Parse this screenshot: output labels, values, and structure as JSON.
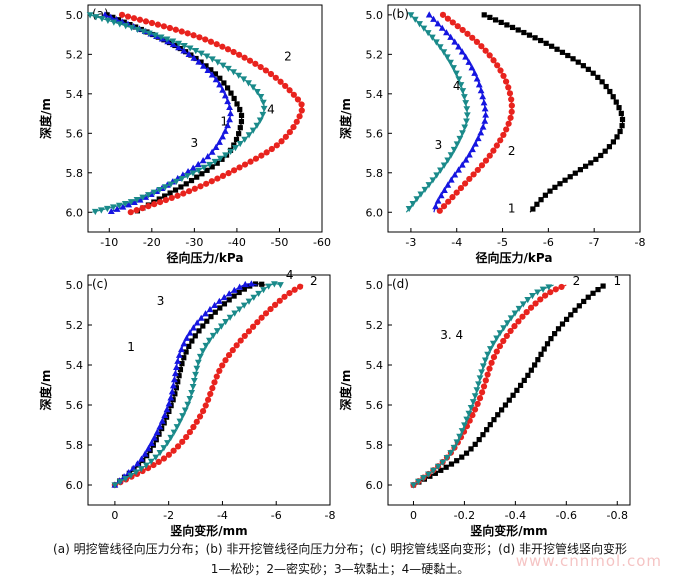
{
  "chart_data": [
    {
      "type": "scatter",
      "panel_label": "(a)",
      "xlabel": "径向压力/kPa",
      "ylabel": "深度/m",
      "xlim": [
        -5,
        -60
      ],
      "ylim": [
        6.1,
        4.95
      ],
      "xticks": [
        "-10",
        "-20",
        "-30",
        "-40",
        "-50",
        "-60"
      ],
      "yticks": [
        "5.0",
        "5.2",
        "5.4",
        "5.6",
        "5.8",
        "6.0"
      ],
      "series": [
        {
          "name": "1",
          "marker": "square",
          "color": "#000000",
          "points": [
            [
              -9.5,
              5.0
            ],
            [
              -25,
              5.15
            ],
            [
              -35,
              5.3
            ],
            [
              -40,
              5.45
            ],
            [
              -41,
              5.55
            ],
            [
              -38,
              5.7
            ],
            [
              -30,
              5.83
            ],
            [
              -22,
              5.93
            ],
            [
              -16,
              6.0
            ]
          ]
        },
        {
          "name": "2",
          "marker": "circle",
          "color": "#e8231e",
          "points": [
            [
              -13,
              5.0
            ],
            [
              -32,
              5.12
            ],
            [
              -46,
              5.27
            ],
            [
              -54,
              5.42
            ],
            [
              -55,
              5.5
            ],
            [
              -50,
              5.65
            ],
            [
              -40,
              5.78
            ],
            [
              -28,
              5.9
            ],
            [
              -15,
              6.0
            ]
          ]
        },
        {
          "name": "3",
          "marker": "triangle-up",
          "color": "#1515e0",
          "points": [
            [
              -9,
              5.0
            ],
            [
              -25,
              5.15
            ],
            [
              -34,
              5.3
            ],
            [
              -38,
              5.45
            ],
            [
              -38,
              5.55
            ],
            [
              -34,
              5.7
            ],
            [
              -26,
              5.83
            ],
            [
              -18,
              5.93
            ],
            [
              -10,
              6.0
            ]
          ]
        },
        {
          "name": "4",
          "marker": "triangle-down",
          "color": "#1a8a8a",
          "points": [
            [
              -5.5,
              5.0
            ],
            [
              -27,
              5.15
            ],
            [
              -40,
              5.3
            ],
            [
              -46,
              5.43
            ],
            [
              -45,
              5.55
            ],
            [
              -38,
              5.7
            ],
            [
              -27,
              5.83
            ],
            [
              -16,
              5.94
            ],
            [
              -6,
              6.0
            ]
          ]
        }
      ],
      "annotations": [
        {
          "text": "1",
          "x": -37,
          "y": 5.56
        },
        {
          "text": "2",
          "x": -52,
          "y": 5.23
        },
        {
          "text": "3",
          "x": -30,
          "y": 5.67
        },
        {
          "text": "4",
          "x": -48,
          "y": 5.5
        }
      ]
    },
    {
      "type": "scatter",
      "panel_label": "(b)",
      "xlabel": "径向压力/kPa",
      "ylabel": "深度/m",
      "xlim": [
        -2.5,
        -8
      ],
      "ylim": [
        6.1,
        4.95
      ],
      "xticks": [
        "-3",
        "-4",
        "-5",
        "-6",
        "-7",
        "-8"
      ],
      "yticks": [
        "5.0",
        "5.2",
        "5.4",
        "5.6",
        "5.8",
        "6.0"
      ],
      "series": [
        {
          "name": "1",
          "marker": "square",
          "color": "#000000",
          "points": [
            [
              -4.6,
              5.0
            ],
            [
              -6.0,
              5.15
            ],
            [
              -7.0,
              5.3
            ],
            [
              -7.5,
              5.45
            ],
            [
              -7.6,
              5.57
            ],
            [
              -7.2,
              5.7
            ],
            [
              -6.6,
              5.8
            ],
            [
              -6.0,
              5.9
            ],
            [
              -5.6,
              6.0
            ]
          ]
        },
        {
          "name": "2",
          "marker": "circle",
          "color": "#e8231e",
          "points": [
            [
              -3.7,
              5.0
            ],
            [
              -4.5,
              5.15
            ],
            [
              -5.0,
              5.3
            ],
            [
              -5.2,
              5.45
            ],
            [
              -5.1,
              5.57
            ],
            [
              -4.7,
              5.72
            ],
            [
              -4.2,
              5.85
            ],
            [
              -3.8,
              5.95
            ],
            [
              -3.6,
              6.0
            ]
          ]
        },
        {
          "name": "3",
          "marker": "triangle-up",
          "color": "#1515e0",
          "points": [
            [
              -3.4,
              5.0
            ],
            [
              -4.0,
              5.15
            ],
            [
              -4.4,
              5.3
            ],
            [
              -4.6,
              5.45
            ],
            [
              -4.6,
              5.55
            ],
            [
              -4.3,
              5.7
            ],
            [
              -3.9,
              5.83
            ],
            [
              -3.6,
              5.94
            ],
            [
              -3.5,
              6.0
            ]
          ]
        },
        {
          "name": "4",
          "marker": "triangle-down",
          "color": "#1a8a8a",
          "points": [
            [
              -3.0,
              5.0
            ],
            [
              -3.6,
              5.15
            ],
            [
              -4.0,
              5.3
            ],
            [
              -4.2,
              5.45
            ],
            [
              -4.2,
              5.55
            ],
            [
              -3.9,
              5.7
            ],
            [
              -3.5,
              5.83
            ],
            [
              -3.1,
              5.94
            ],
            [
              -2.9,
              6.0
            ]
          ]
        }
      ],
      "annotations": [
        {
          "text": "1",
          "x": -5.2,
          "y": 6.0
        },
        {
          "text": "2",
          "x": -5.2,
          "y": 5.71
        },
        {
          "text": "3",
          "x": -3.6,
          "y": 5.68
        },
        {
          "text": "4",
          "x": -4.0,
          "y": 5.38
        }
      ]
    },
    {
      "type": "scatter",
      "panel_label": "(c)",
      "xlabel": "竖向变形/mm",
      "ylabel": "深度/m",
      "xlim": [
        1,
        -8
      ],
      "ylim": [
        6.1,
        4.95
      ],
      "xticks": [
        "0",
        "-2",
        "-4",
        "-6",
        "-8"
      ],
      "yticks": [
        "5.0",
        "5.2",
        "5.4",
        "5.6",
        "5.8",
        "6.0"
      ],
      "series": [
        {
          "name": "1",
          "marker": "square",
          "color": "#000000",
          "points": [
            [
              0,
              6.0
            ],
            [
              -1.2,
              5.85
            ],
            [
              -2.1,
              5.6
            ],
            [
              -2.6,
              5.35
            ],
            [
              -3.3,
              5.2
            ],
            [
              -4.2,
              5.08
            ],
            [
              -5.1,
              5.0
            ],
            [
              -5.6,
              5.0
            ]
          ]
        },
        {
          "name": "2",
          "marker": "circle",
          "color": "#e8231e",
          "points": [
            [
              0,
              6.0
            ],
            [
              -2.0,
              5.85
            ],
            [
              -3.2,
              5.65
            ],
            [
              -4.0,
              5.4
            ],
            [
              -5.2,
              5.2
            ],
            [
              -6.3,
              5.06
            ],
            [
              -7.0,
              5.0
            ]
          ]
        },
        {
          "name": "3",
          "marker": "triangle-up",
          "color": "#1515e0",
          "points": [
            [
              0,
              6.0
            ],
            [
              -1.1,
              5.85
            ],
            [
              -2.0,
              5.6
            ],
            [
              -2.4,
              5.35
            ],
            [
              -3.0,
              5.2
            ],
            [
              -3.9,
              5.08
            ],
            [
              -4.8,
              5.0
            ],
            [
              -5.3,
              5.0
            ]
          ]
        },
        {
          "name": "4",
          "marker": "triangle-down",
          "color": "#1a8a8a",
          "points": [
            [
              0,
              6.0
            ],
            [
              -1.6,
              5.85
            ],
            [
              -2.7,
              5.6
            ],
            [
              -3.2,
              5.35
            ],
            [
              -4.0,
              5.2
            ],
            [
              -5.0,
              5.08
            ],
            [
              -5.8,
              5.0
            ],
            [
              -6.2,
              5.0
            ]
          ]
        }
      ],
      "annotations": [
        {
          "text": "1",
          "x": -0.6,
          "y": 5.33
        },
        {
          "text": "2",
          "x": -7.4,
          "y": 5.0
        },
        {
          "text": "3",
          "x": -1.7,
          "y": 5.1
        },
        {
          "text": "4",
          "x": -6.5,
          "y": 4.97
        }
      ]
    },
    {
      "type": "scatter",
      "panel_label": "(d)",
      "xlabel": "竖向变形/mm",
      "ylabel": "深度/m",
      "xlim": [
        0.1,
        -0.85
      ],
      "ylim": [
        6.1,
        4.95
      ],
      "xticks": [
        "0",
        "-0.2",
        "-0.4",
        "-0.6",
        "-0.8"
      ],
      "yticks": [
        "5.0",
        "5.2",
        "5.4",
        "5.6",
        "5.8",
        "6.0"
      ],
      "series": [
        {
          "name": "1",
          "marker": "square",
          "color": "#000000",
          "points": [
            [
              0,
              6.0
            ],
            [
              -0.2,
              5.85
            ],
            [
              -0.33,
              5.65
            ],
            [
              -0.45,
              5.45
            ],
            [
              -0.55,
              5.25
            ],
            [
              -0.67,
              5.08
            ],
            [
              -0.75,
              5.0
            ]
          ]
        },
        {
          "name": "2",
          "marker": "circle",
          "color": "#e8231e",
          "points": [
            [
              0,
              6.0
            ],
            [
              -0.14,
              5.85
            ],
            [
              -0.25,
              5.6
            ],
            [
              -0.32,
              5.35
            ],
            [
              -0.42,
              5.17
            ],
            [
              -0.52,
              5.05
            ],
            [
              -0.6,
              5.0
            ]
          ]
        },
        {
          "name": "3, 4",
          "marker": "triangle-down",
          "color": "#1a8a8a",
          "points": [
            [
              0,
              6.0
            ],
            [
              -0.14,
              5.85
            ],
            [
              -0.23,
              5.6
            ],
            [
              -0.29,
              5.35
            ],
            [
              -0.38,
              5.17
            ],
            [
              -0.47,
              5.05
            ],
            [
              -0.55,
              5.0
            ]
          ]
        }
      ],
      "annotations": [
        {
          "text": "1",
          "x": -0.8,
          "y": 5.0
        },
        {
          "text": "2",
          "x": -0.64,
          "y": 5.0
        },
        {
          "text": "3. 4",
          "x": -0.15,
          "y": 5.27
        }
      ]
    }
  ],
  "caption": {
    "line1": "(a)  明挖管线径向压力分布；(b)  非开挖管线径向压力分布；(c)  明挖管线竖向变形；(d)  非开挖管线竖向变形",
    "line2": "1—松砂；2—密实砂；3—软黏土；4—硬黏土。"
  },
  "watermark": "www.cnnmol.com"
}
